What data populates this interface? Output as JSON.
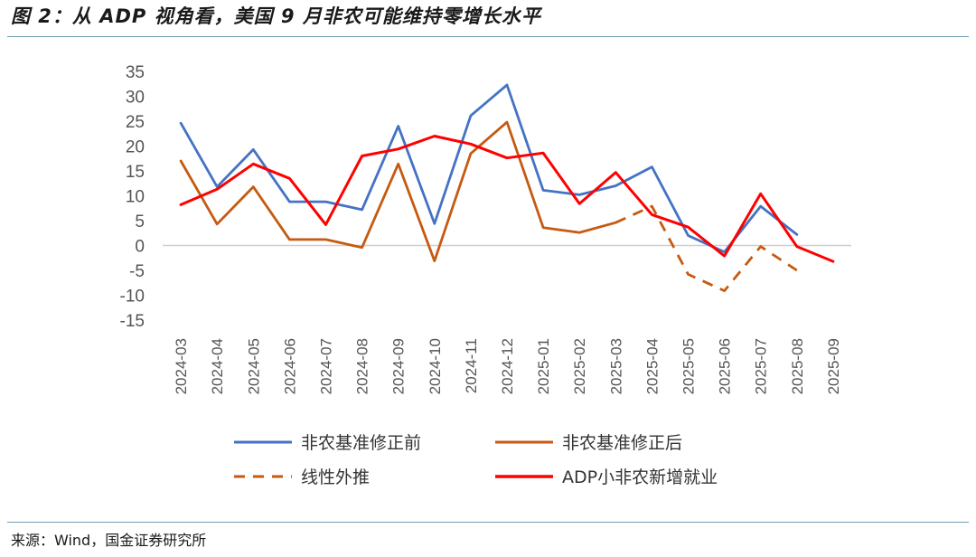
{
  "title": "图 2：从 ADP 视角看，美国 9 月非农可能维持零增长水平",
  "source": "来源：Wind，国金证券研究所",
  "chart_data": {
    "type": "line",
    "categories": [
      "2024-03",
      "2024-04",
      "2024-05",
      "2024-06",
      "2024-07",
      "2024-08",
      "2024-09",
      "2024-10",
      "2024-11",
      "2024-12",
      "2025-01",
      "2025-02",
      "2025-03",
      "2025-04",
      "2025-05",
      "2025-06",
      "2025-07",
      "2025-08",
      "2025-09"
    ],
    "ylim": [
      -15,
      35
    ],
    "yticks": [
      -15,
      -10,
      -5,
      0,
      5,
      10,
      15,
      20,
      25,
      30,
      35
    ],
    "series": [
      {
        "name": "非农基准修正前",
        "color": "#4472c4",
        "dash": false,
        "values": [
          24.6,
          11.8,
          19.3,
          8.8,
          8.8,
          7.2,
          24.0,
          4.4,
          26.1,
          32.3,
          11.1,
          10.2,
          12.0,
          15.8,
          2.0,
          -1.3,
          7.9,
          2.2,
          null
        ]
      },
      {
        "name": "非农基准修正后",
        "color": "#c55a11",
        "dash": false,
        "values": [
          17.0,
          4.3,
          11.8,
          1.2,
          1.2,
          -0.4,
          16.4,
          -3.1,
          18.5,
          24.8,
          3.6,
          2.6,
          4.6,
          null,
          null,
          null,
          null,
          null,
          null
        ]
      },
      {
        "name": "线性外推",
        "color": "#c55a11",
        "dash": true,
        "values": [
          null,
          null,
          null,
          null,
          null,
          null,
          null,
          null,
          null,
          null,
          null,
          null,
          4.6,
          7.9,
          -5.8,
          -9.1,
          -0.2,
          -5.0,
          null
        ]
      },
      {
        "name": "ADP小非农新增就业",
        "color": "#ff0000",
        "dash": false,
        "values": [
          8.2,
          11.3,
          16.4,
          13.5,
          4.2,
          18.0,
          19.4,
          22.0,
          20.4,
          17.6,
          18.6,
          8.4,
          14.7,
          6.2,
          3.7,
          -2.1,
          10.4,
          -0.2,
          -3.2
        ]
      }
    ]
  }
}
